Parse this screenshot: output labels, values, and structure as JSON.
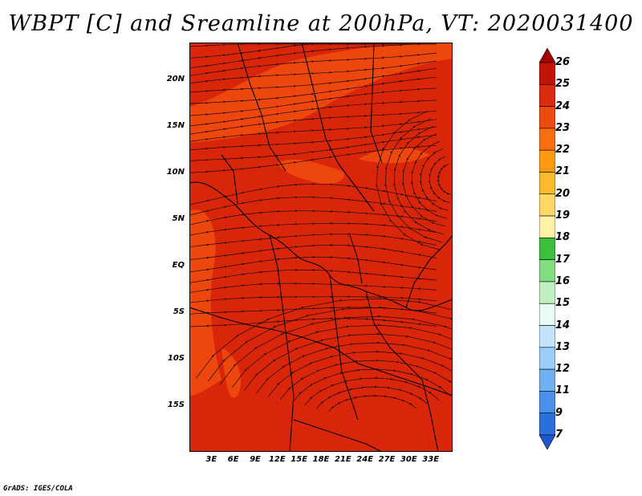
{
  "title": "WBPT [C] and Sreamline at 200hPa, VT: 2020031400",
  "map": {
    "lat_range": [
      -20,
      24
    ],
    "lon_range": [
      0,
      36
    ],
    "lat_labels": [
      "20N",
      "15N",
      "10N",
      "5N",
      "EQ",
      "5S",
      "10S",
      "15S"
    ],
    "lon_labels": [
      "3E",
      "6E",
      "9E",
      "12E",
      "15E",
      "18E",
      "21E",
      "24E",
      "27E",
      "30E",
      "33E"
    ],
    "field_colors": {
      "level_24_25": "#d9260a",
      "level_23_24": "#f04e0e",
      "boundary": "#000000",
      "streamline": "#1a0a05"
    }
  },
  "colorbar": {
    "labels": [
      "26",
      "25",
      "24",
      "23",
      "22",
      "21",
      "20",
      "19",
      "18",
      "17",
      "16",
      "15",
      "14",
      "13",
      "12",
      "11",
      "9",
      "7"
    ],
    "colors": [
      "#a50000",
      "#c4140a",
      "#dc2a0c",
      "#f04b0e",
      "#fa6e10",
      "#fd9a10",
      "#feba2e",
      "#fed866",
      "#fff2a8",
      "#3cc03c",
      "#82dc82",
      "#bff0bf",
      "#e8fbf5",
      "#c3e3fb",
      "#9ccdf8",
      "#6fb0f3",
      "#4a90ea",
      "#2a6fdc",
      "#1e55cc"
    ]
  },
  "credit": "GrADS: IGES/COLA"
}
